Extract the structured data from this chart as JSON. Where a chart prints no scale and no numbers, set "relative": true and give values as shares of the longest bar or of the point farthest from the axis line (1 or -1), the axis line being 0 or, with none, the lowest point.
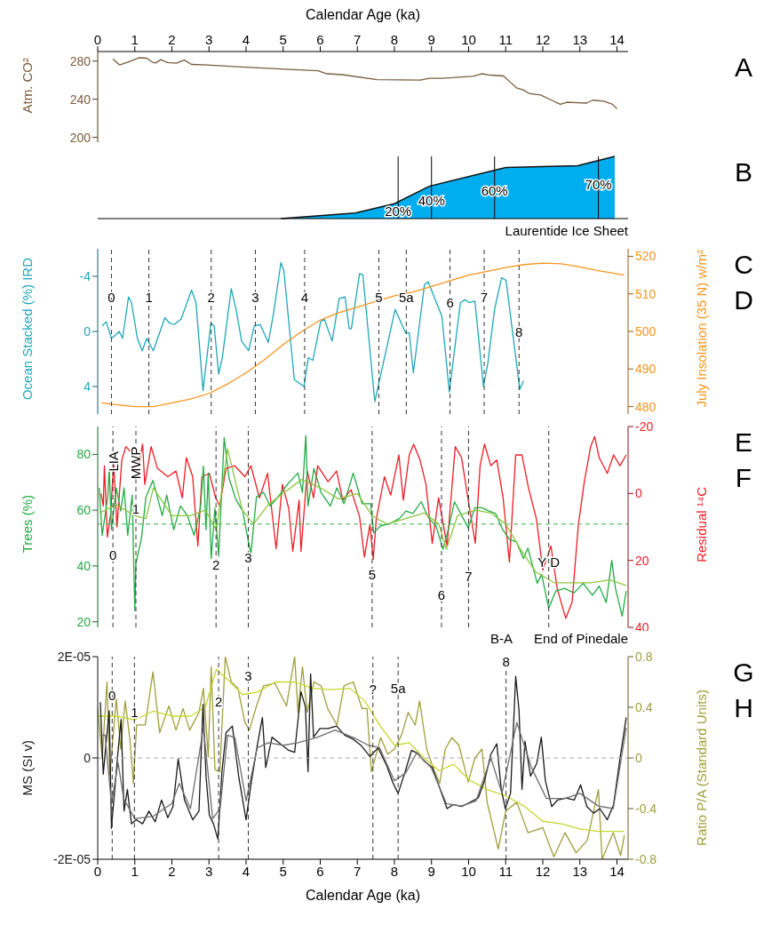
{
  "chart_data": [
    {
      "type": "line",
      "xlabel": "Calendar Age (ka)",
      "xlim": [
        0,
        14.3
      ],
      "xticks": [
        0,
        1,
        2,
        3,
        4,
        5,
        6,
        7,
        8,
        9,
        10,
        11,
        12,
        13,
        14
      ],
      "ylabel": "Atm. CO²",
      "ylim": [
        195,
        290
      ],
      "yticks": [
        200,
        240,
        280
      ],
      "annotations": [
        "A"
      ],
      "series": [
        {
          "color": "#7a5c3a",
          "x": [
            0.41,
            0.59,
            0.82,
            1.12,
            1.32,
            1.47,
            1.56,
            1.7,
            1.88,
            2.12,
            2.33,
            2.53,
            2.94,
            4.12,
            5.29,
            5.94,
            6.18,
            6.59,
            7.53,
            8.7,
            8.94,
            9.29,
            10.12,
            10.35,
            10.59,
            10.94,
            11.12,
            11.29,
            11.47,
            11.65,
            11.94,
            12.24,
            12.47,
            12.65,
            12.94,
            13.18,
            13.35,
            13.65,
            13.88,
            14.0
          ],
          "values": [
            282,
            276,
            279,
            283.5,
            283,
            279,
            278,
            281.5,
            278.5,
            277.8,
            281,
            276.5,
            276,
            273.3,
            271,
            269.8,
            266.7,
            265.8,
            260.5,
            260,
            262,
            262,
            264,
            266.7,
            265.3,
            264.4,
            258,
            252,
            249.8,
            245.8,
            244.4,
            239,
            234.7,
            236.9,
            236.4,
            236,
            239,
            238,
            234.7,
            230
          ]
        }
      ]
    },
    {
      "type": "area",
      "relative": true,
      "xlim": [
        0,
        14.3
      ],
      "tick_labels": false,
      "annotations": [
        "B",
        "Laurentide Ice Sheet",
        {
          "text": "20%",
          "x": 8.1,
          "y": 0.12
        },
        {
          "text": "40%",
          "x": 9.0,
          "y": 0.3
        },
        {
          "text": "60%",
          "x": 10.7,
          "y": 0.45
        },
        {
          "text": "70%",
          "x": 13.5,
          "y": 0.55
        }
      ],
      "ref_lines": [
        {
          "axis": "x",
          "value": 8.1,
          "color": "#000000",
          "line_style": "solid"
        },
        {
          "axis": "x",
          "value": 9.0,
          "color": "#000000",
          "line_style": "solid"
        },
        {
          "axis": "x",
          "value": 10.7,
          "color": "#000000",
          "line_style": "solid"
        },
        {
          "axis": "x",
          "value": 13.5,
          "color": "#000000",
          "line_style": "solid"
        }
      ],
      "series": [
        {
          "color": "#00aeef",
          "x": [
            4.94,
            6.94,
            8.0,
            8.94,
            11.0,
            12.94,
            13.94
          ],
          "values": [
            0,
            0.09,
            0.24,
            0.52,
            0.82,
            0.85,
            1
          ]
        }
      ]
    },
    {
      "type": "line",
      "xlim": [
        0,
        14.3
      ],
      "tick_labels": "y",
      "ylabel": "Ocean Stacked (%) IRD",
      "ylim": [
        6,
        -6
      ],
      "yticks": [
        -4,
        0,
        4
      ],
      "y2label": "July Insolation (35 N) w/m²",
      "y2lim": [
        478,
        522
      ],
      "y2ticks": [
        480,
        490,
        500,
        510,
        520
      ],
      "annotations": [
        "C",
        "D",
        {
          "text": "0",
          "x": 0.37,
          "y": -2.5
        },
        {
          "text": "1",
          "x": 1.38,
          "y": -2.5
        },
        {
          "text": "2",
          "x": 3.06,
          "y": -2.5
        },
        {
          "text": "3",
          "x": 4.25,
          "y": -2.5
        },
        {
          "text": "4",
          "x": 5.58,
          "y": -2.5
        },
        {
          "text": "5",
          "x": 7.58,
          "y": -2.5
        },
        {
          "text": "5a",
          "x": 8.32,
          "y": -2.5
        },
        {
          "text": "6",
          "x": 9.5,
          "y": -2.1
        },
        {
          "text": "7",
          "x": 10.42,
          "y": -2.5
        },
        {
          "text": "8",
          "x": 11.36,
          "y": 0
        }
      ],
      "ref_lines": [
        {
          "axis": "x",
          "value": 0.37,
          "color": "#333333",
          "line_style": "dashed"
        },
        {
          "axis": "x",
          "value": 1.38,
          "color": "#333333",
          "line_style": "dashed"
        },
        {
          "axis": "x",
          "value": 3.06,
          "color": "#333333",
          "line_style": "dashed"
        },
        {
          "axis": "x",
          "value": 4.25,
          "color": "#333333",
          "line_style": "dashed"
        },
        {
          "axis": "x",
          "value": 5.58,
          "color": "#333333",
          "line_style": "dashed"
        },
        {
          "axis": "x",
          "value": 7.58,
          "color": "#333333",
          "line_style": "dashed"
        },
        {
          "axis": "x",
          "value": 8.32,
          "color": "#333333",
          "line_style": "dashed"
        },
        {
          "axis": "x",
          "value": 9.5,
          "color": "#333333",
          "line_style": "dashed"
        },
        {
          "axis": "x",
          "value": 10.42,
          "color": "#333333",
          "line_style": "dashed"
        },
        {
          "axis": "x",
          "value": 11.36,
          "color": "#333333",
          "line_style": "dashed"
        }
      ],
      "series": [
        {
          "color": "#1ea7b8",
          "x": [
            0.12,
            0.23,
            0.37,
            0.46,
            0.58,
            0.67,
            0.83,
            0.91,
            1.07,
            1.2,
            1.32,
            1.5,
            1.81,
            1.94,
            2.06,
            2.25,
            2.53,
            2.65,
            2.84,
            3.05,
            3.14,
            3.26,
            3.36,
            3.6,
            3.73,
            3.88,
            4.07,
            4.22,
            4.38,
            4.6,
            4.74,
            4.94,
            5.02,
            5.3,
            5.56,
            5.68,
            5.8,
            6.01,
            6.11,
            6.32,
            6.51,
            6.67,
            6.78,
            6.84,
            7.06,
            7.15,
            7.47,
            8.02,
            8.3,
            8.4,
            8.51,
            8.81,
            8.91,
            9.28,
            9.48,
            9.78,
            9.9,
            10.02,
            10.17,
            10.4,
            10.52,
            10.7,
            10.89,
            11.01,
            11.38,
            11.48
          ],
          "values": [
            -0.4,
            -0.7,
            0.5,
            0.3,
            0,
            0.5,
            -2.5,
            -2.1,
            0.5,
            1.4,
            0.5,
            1.4,
            -1,
            -0.6,
            -0.5,
            -0.9,
            -3,
            -2.1,
            4.3,
            -0.6,
            -0.4,
            3.1,
            1.9,
            -3.1,
            -1.6,
            0.7,
            1.4,
            -0.4,
            -0.5,
            0.8,
            -1.3,
            -5,
            -4.4,
            3.5,
            4,
            1.9,
            2.1,
            -0.7,
            -0.9,
            0.7,
            -2.4,
            -2.5,
            -0.2,
            -0.2,
            -4.2,
            -4.1,
            5.1,
            -1.6,
            0.1,
            0.1,
            3,
            -3.4,
            -3.6,
            -1.1,
            4.4,
            -2.1,
            -2.3,
            -2.1,
            -2.2,
            4,
            2.3,
            -1.6,
            -3.9,
            -3.7,
            4.2,
            3.6
          ]
        },
        {
          "color": "#f7941d",
          "axis": "y2",
          "x": [
            0.1,
            0.5,
            1,
            1.5,
            2,
            2.5,
            3,
            3.5,
            4,
            4.5,
            5,
            5.5,
            6,
            6.5,
            7,
            7.5,
            8,
            8.5,
            9,
            9.5,
            10,
            10.5,
            11,
            11.5,
            12,
            12.5,
            13,
            13.5,
            14.2
          ],
          "values": [
            481,
            480.5,
            480,
            480,
            481,
            482,
            483.5,
            486,
            489,
            492.5,
            496.5,
            500,
            503,
            505,
            506.5,
            508,
            509.5,
            510.5,
            512,
            513.5,
            515,
            516,
            517,
            517.8,
            518.2,
            518,
            517.2,
            516.2,
            515
          ]
        }
      ]
    },
    {
      "type": "line",
      "xlim": [
        0,
        14.3
      ],
      "tick_labels": "y",
      "ylabel": "Trees (%)",
      "ylim": [
        18,
        90
      ],
      "yticks": [
        20,
        40,
        60,
        80
      ],
      "y2label": "Residual ¹⁴C",
      "y2lim": [
        40,
        -20
      ],
      "y2ticks": [
        -20,
        0,
        20,
        40
      ],
      "ref_lines": [
        {
          "axis": "y",
          "value": 55,
          "color": "#3cb44b",
          "line_style": "dashed"
        },
        {
          "axis": "x",
          "value": 0.41,
          "color": "#333333",
          "line_style": "dashed"
        },
        {
          "axis": "x",
          "value": 1.03,
          "color": "#333333",
          "line_style": "dashed"
        },
        {
          "axis": "x",
          "value": 3.19,
          "color": "#333333",
          "line_style": "dashed"
        },
        {
          "axis": "x",
          "value": 4.06,
          "color": "#333333",
          "line_style": "dashed"
        },
        {
          "axis": "x",
          "value": 7.4,
          "color": "#333333",
          "line_style": "dashed"
        },
        {
          "axis": "x",
          "value": 9.27,
          "color": "#333333",
          "line_style": "dashed"
        },
        {
          "axis": "x",
          "value": 10.0,
          "color": "#333333",
          "line_style": "dashed"
        },
        {
          "axis": "x",
          "value": 12.16,
          "color": "#333333",
          "line_style": "dashed"
        }
      ],
      "annotations": [
        "E",
        "F",
        "B-A",
        "End of Pinedale",
        {
          "text": "LIA",
          "x": 0.41,
          "y": 77.5
        },
        {
          "text": "MWP",
          "x": 1.03,
          "y": 77
        },
        {
          "text": "0",
          "x": 0.41,
          "y": 44
        },
        {
          "text": "1",
          "x": 1.03,
          "y": 60.5
        },
        {
          "text": "2",
          "x": 3.19,
          "y": 40.4
        },
        {
          "text": "3",
          "x": 4.06,
          "y": 43
        },
        {
          "text": "5",
          "x": 7.4,
          "y": 36.8
        },
        {
          "text": "6",
          "x": 9.27,
          "y": 29.6
        },
        {
          "text": "7",
          "x": 10.0,
          "y": 36.3
        },
        {
          "text": "Y D",
          "x": 12.16,
          "y": 41.5
        }
      ],
      "series": [
        {
          "color": "#ed1c24",
          "axis": "y2",
          "x": [
            0.09,
            0.15,
            0.18,
            0.26,
            0.35,
            0.43,
            0.52,
            0.65,
            0.76,
            0.93,
            1.1,
            1.21,
            1.27,
            1.44,
            1.61,
            1.89,
            2.11,
            2.28,
            2.39,
            2.56,
            2.7,
            2.81,
            3.01,
            3.18,
            3.29,
            3.46,
            3.69,
            3.97,
            4.13,
            4.36,
            4.58,
            4.81,
            4.98,
            5.15,
            5.26,
            5.43,
            5.48,
            5.65,
            5.82,
            5.93,
            6.21,
            6.44,
            6.61,
            6.83,
            7.06,
            7.19,
            7.34,
            7.43,
            7.51,
            7.73,
            7.9,
            8.12,
            8.24,
            8.4,
            8.52,
            8.69,
            8.85,
            9.02,
            9.19,
            9.42,
            9.64,
            9.81,
            9.98,
            10.18,
            10.31,
            10.43,
            10.6,
            10.76,
            10.93,
            11.1,
            11.27,
            11.44,
            11.61,
            11.83,
            12.0,
            12.22,
            12.39,
            12.62,
            12.79,
            12.96,
            13.12,
            13.29,
            13.4,
            13.52,
            13.74,
            13.91,
            14.08,
            14.25
          ],
          "values": [
            0,
            3.7,
            -8.3,
            13,
            6,
            -9,
            10,
            -10,
            -14,
            -12,
            -8,
            -14.7,
            -2.7,
            -14,
            -7.5,
            -5,
            -6.7,
            1.3,
            -10.7,
            -5,
            15.7,
            -5,
            -6,
            1.3,
            3.7,
            -7.5,
            -8.3,
            -5,
            -8.3,
            1.3,
            -6,
            16.5,
            -2.7,
            4.5,
            17.3,
            2,
            17.3,
            -6.7,
            1.3,
            -8.3,
            -3.5,
            -6.7,
            2,
            -1.1,
            6.9,
            19,
            9.3,
            19.7,
            7.7,
            -5,
            0.5,
            -11.5,
            2,
            -11.5,
            -14.7,
            -10,
            -2.7,
            14.9,
            1.3,
            15.7,
            -14,
            -10.7,
            1.3,
            14.9,
            -8.3,
            -14.7,
            -8.3,
            -10,
            1.3,
            20.5,
            -11.5,
            -11.5,
            -1.9,
            7.7,
            22.9,
            15.7,
            28.5,
            37.3,
            32.5,
            9.3,
            -3.5,
            -14,
            -17,
            -10.7,
            -6,
            -11.5,
            -8.3,
            -11.5
          ]
        },
        {
          "color": "#22aa44",
          "x": [
            0.04,
            0.12,
            0.27,
            0.31,
            0.37,
            0.5,
            0.62,
            0.71,
            0.81,
            0.93,
            1.0,
            1.03,
            1.18,
            1.3,
            1.49,
            1.74,
            1.86,
            2.05,
            2.23,
            2.42,
            2.6,
            2.77,
            2.85,
            2.92,
            2.98,
            3.06,
            3.16,
            3.26,
            3.41,
            3.54,
            3.72,
            3.91,
            4.03,
            4.13,
            4.28,
            4.47,
            4.65,
            4.9,
            5.15,
            5.4,
            5.52,
            5.61,
            5.67,
            5.83,
            6.02,
            6.27,
            6.45,
            6.64,
            6.89,
            7.13,
            7.36,
            7.44,
            7.63,
            7.88,
            8.13,
            8.31,
            8.5,
            8.72,
            8.93,
            9.12,
            9.31,
            9.43,
            9.62,
            9.74,
            9.99,
            10.17,
            10.36,
            10.55,
            10.73,
            10.92,
            11.11,
            11.29,
            11.48,
            11.6,
            11.85,
            11.97,
            12.16,
            12.35,
            12.59,
            12.84,
            13.09,
            13.34,
            13.52,
            13.71,
            13.86,
            13.96,
            14.14,
            14.25
          ],
          "values": [
            68,
            51,
            64.7,
            75,
            53,
            68,
            59.7,
            68,
            51,
            65.4,
            24,
            41,
            50,
            64.7,
            70.7,
            58,
            65.4,
            53,
            61.5,
            58,
            51,
            61,
            75.8,
            53,
            73.3,
            42.7,
            60.7,
            43.5,
            86,
            71.5,
            64,
            59.7,
            51,
            44.4,
            64.7,
            66.4,
            61.5,
            65.4,
            69.8,
            73.3,
            66.4,
            86.8,
            61.5,
            75,
            66.4,
            61.5,
            68,
            62.3,
            73.3,
            62.3,
            62.3,
            51.9,
            54.4,
            55.2,
            57,
            59.7,
            58.8,
            63,
            57,
            54.4,
            46,
            51.9,
            63,
            60,
            53.6,
            60.9,
            60.9,
            59.7,
            58.8,
            53,
            49.5,
            48.6,
            42.7,
            46.4,
            33.8,
            37,
            24.9,
            31,
            32,
            30.3,
            33.8,
            29.5,
            32.8,
            26.9,
            42,
            32,
            22,
            31
          ]
        },
        {
          "color": "#8dc63f",
          "x": [
            0.05,
            0.5,
            1.0,
            1.3,
            1.5,
            2,
            2.5,
            2.9,
            3.2,
            3.5,
            3.9,
            4.2,
            4.6,
            5,
            5.5,
            6,
            6.5,
            7,
            7.4,
            7.8,
            8.3,
            8.8,
            9.2,
            9.4,
            9.7,
            10.2,
            10.6,
            11,
            11.4,
            11.8,
            12.3,
            12.8,
            13.3,
            13.8,
            14.25
          ],
          "values": [
            59,
            62,
            58,
            57,
            68,
            58,
            58,
            60,
            53,
            82,
            60,
            55,
            62,
            66,
            71,
            68,
            64,
            66,
            58,
            55,
            57,
            59,
            55,
            46,
            58,
            60,
            59,
            55,
            46,
            38,
            34,
            34,
            34,
            35,
            33
          ]
        }
      ]
    },
    {
      "type": "line",
      "xlabel": "Calendar Age (ka)",
      "xlim": [
        0,
        14.3
      ],
      "xticks": [
        0,
        1,
        2,
        3,
        4,
        5,
        6,
        7,
        8,
        9,
        10,
        11,
        12,
        13,
        14
      ],
      "ylabel": "MS (SI v)",
      "ylim": [
        -2e-05,
        2e-05
      ],
      "yticks": [
        {
          "value": 2e-05,
          "label": "2E-05"
        },
        0,
        {
          "value": -2e-05,
          "label": "-2E-05"
        }
      ],
      "y2label": "Ratio P/A (Standard Units)",
      "y2lim": [
        -0.8,
        0.8
      ],
      "y2ticks": [
        -0.8,
        -0.4,
        0,
        0.4,
        0.8
      ],
      "ref_lines": [
        {
          "axis": "y",
          "value": 0,
          "color": "#aaaaaa",
          "line_style": "dashed"
        },
        {
          "axis": "x",
          "value": 0.39,
          "color": "#333333",
          "line_style": "dashed"
        },
        {
          "axis": "x",
          "value": 0.99,
          "color": "#333333",
          "line_style": "dashed"
        },
        {
          "axis": "x",
          "value": 3.26,
          "color": "#333333",
          "line_style": "dashed"
        },
        {
          "axis": "x",
          "value": 4.06,
          "color": "#333333",
          "line_style": "dashed"
        },
        {
          "axis": "x",
          "value": 7.42,
          "color": "#333333",
          "line_style": "dashed"
        },
        {
          "axis": "x",
          "value": 8.1,
          "color": "#333333",
          "line_style": "dashed"
        },
        {
          "axis": "x",
          "value": 11.01,
          "color": "#333333",
          "line_style": "dashed"
        }
      ],
      "annotations": [
        "G",
        "H",
        {
          "text": "0",
          "x": 0.39,
          "y": 1.23e-05
        },
        {
          "text": "1",
          "x": 0.99,
          "y": 9.1e-06
        },
        {
          "text": "2",
          "x": 3.26,
          "y": 1.12e-05
        },
        {
          "text": "3",
          "x": 4.06,
          "y": 1.63e-05
        },
        {
          "text": "?",
          "x": 7.42,
          "y": 1.36e-05
        },
        {
          "text": "5a",
          "x": 8.1,
          "y": 1.38e-05
        },
        {
          "text": "8",
          "x": 11.01,
          "y": 1.9e-05
        }
      ],
      "series": [
        {
          "color": "#9e9e3c",
          "axis": "y2",
          "x": [
            0,
            0.12,
            0.25,
            0.33,
            0.5,
            0.62,
            0.74,
            0.87,
            0.96,
            1.05,
            1.28,
            1.49,
            1.67,
            1.92,
            2.11,
            2.3,
            2.48,
            2.73,
            2.85,
            2.98,
            3.06,
            3.16,
            3.29,
            3.44,
            3.6,
            3.78,
            3.97,
            4.09,
            4.28,
            4.47,
            4.78,
            5.09,
            5.31,
            5.4,
            5.52,
            5.65,
            5.83,
            6.02,
            6.2,
            6.45,
            6.64,
            6.89,
            7.13,
            7.26,
            7.38,
            7.63,
            7.82,
            8.0,
            8.19,
            8.37,
            8.56,
            8.68,
            8.87,
            9.06,
            9.22,
            9.37,
            9.55,
            9.74,
            9.99,
            10.17,
            10.36,
            10.5,
            10.8,
            11.0,
            11.3,
            11.6,
            12.0,
            12.3,
            12.6,
            12.9,
            13.2,
            13.5,
            13.6,
            13.9,
            14.1,
            14.2
          ],
          "values": [
            0.39,
            0,
            0.6,
            -0.13,
            0.47,
            0.07,
            0.45,
            0.14,
            -0.2,
            0.26,
            0.26,
            0.68,
            0.2,
            0.41,
            0.22,
            0.39,
            0.22,
            0.36,
            0.55,
            0.01,
            0.72,
            -0.09,
            -0.11,
            0.8,
            0.6,
            0.55,
            0.28,
            0.22,
            0.41,
            0.57,
            0.59,
            0.41,
            0.8,
            0.36,
            0.72,
            0.36,
            0.6,
            0.57,
            0.39,
            0.26,
            0.57,
            0.6,
            0.39,
            0.39,
            -0.11,
            0.16,
            0.03,
            0.07,
            0.18,
            0.36,
            0.26,
            0.45,
            0.07,
            -0.09,
            -0.2,
            0.07,
            0.16,
            0.1,
            -0.19,
            0,
            0.07,
            -0.35,
            -0.72,
            -0.42,
            -0.35,
            -0.59,
            -0.55,
            -0.78,
            -0.59,
            -0.75,
            -0.65,
            -0.25,
            -0.8,
            -0.59,
            -0.77,
            -0.61
          ]
        },
        {
          "color": "#c8d62e",
          "axis": "y2",
          "x": [
            0,
            0.5,
            1,
            1.5,
            2,
            2.5,
            2.9,
            3.2,
            3.5,
            3.9,
            4.3,
            4.8,
            5.3,
            5.8,
            6.3,
            6.8,
            7.2,
            7.6,
            8,
            8.4,
            8.8,
            9.2,
            9.6,
            10,
            10.5,
            11,
            11.5,
            12,
            12.5,
            13,
            13.5,
            14.2
          ],
          "values": [
            0.33,
            0.33,
            0.3,
            0.37,
            0.33,
            0.33,
            0.4,
            0.7,
            0.62,
            0.5,
            0.52,
            0.6,
            0.6,
            0.55,
            0.54,
            0.55,
            0.45,
            0.26,
            0.1,
            0.12,
            0,
            -0.1,
            -0.05,
            -0.17,
            -0.25,
            -0.3,
            -0.38,
            -0.5,
            -0.52,
            -0.56,
            -0.58,
            -0.58
          ]
        },
        {
          "color": "#1a1a1a",
          "x": [
            0.07,
            0.15,
            0.24,
            0.31,
            0.37,
            0.46,
            0.54,
            0.63,
            0.71,
            0.8,
            0.91,
            1.04,
            1.21,
            1.38,
            1.55,
            1.72,
            1.89,
            2.03,
            2.17,
            2.34,
            2.56,
            2.73,
            2.84,
            2.92,
            3.01,
            3.12,
            3.24,
            3.35,
            3.46,
            3.63,
            3.8,
            4.0,
            4.13,
            4.3,
            4.44,
            4.53,
            4.7,
            4.92,
            5.15,
            5.31,
            5.48,
            5.6,
            5.67,
            5.74,
            5.82,
            5.99,
            6.21,
            6.44,
            6.66,
            6.89,
            7.11,
            7.34,
            7.56,
            7.79,
            7.96,
            8.1,
            8.29,
            8.46,
            8.63,
            8.8,
            9.02,
            9.19,
            9.42,
            9.58,
            9.81,
            10.03,
            10.26,
            10.43,
            10.6,
            10.76,
            10.88,
            10.99,
            11.13,
            11.27,
            11.36,
            11.44,
            11.52,
            11.67,
            11.84,
            11.96,
            12.07,
            12.24,
            12.4,
            12.63,
            12.85,
            13.02,
            13.19,
            13.37,
            13.54,
            13.74,
            13.91,
            14.08,
            14.25
          ],
          "values": [
            1.1e-05,
            -3.2e-06,
            4.1e-06,
            9.3e-06,
            -1.39e-05,
            -6.2e-06,
            7e-07,
            7.6e-06,
            -1.05e-05,
            -6.2e-06,
            -1.3e-05,
            -1.22e-05,
            -1.3e-05,
            -1.05e-05,
            -1.26e-05,
            -8.3e-06,
            -1.18e-05,
            -9.6e-06,
            -2e-07,
            -8.3e-06,
            -1.22e-05,
            -1.05e-05,
            1.06e-05,
            -3.6e-06,
            -1.13e-05,
            -1.3e-05,
            -1.6e-05,
            -2.7e-06,
            5e-06,
            6.3e-06,
            -3.6e-06,
            -1.22e-05,
            -5.3e-06,
            2.4e-06,
            8e-06,
            -1.9e-06,
            4.1e-06,
            2.8e-06,
            1.5e-06,
            1.1e-06,
            1.31e-05,
            1.01e-05,
            -2.7e-06,
            1.66e-05,
            4.1e-06,
            5.8e-06,
            5.8e-06,
            6.3e-06,
            4.5e-06,
            3.7e-06,
            2.4e-06,
            3e-07,
            2e-06,
            -1.5e-06,
            -4.9e-06,
            -7e-06,
            -2.7e-06,
            1.5e-06,
            9e-07,
            -6e-07,
            -1.9e-06,
            -5.3e-06,
            -1e-05,
            -9.2e-06,
            -9.6e-06,
            -8.8e-06,
            -7.9e-06,
            -4.5e-06,
            7e-07,
            2.8e-06,
            -6.2e-06,
            -1e-05,
            -7e-06,
            1.61e-05,
            9.3e-06,
            -6.2e-06,
            3.3e-06,
            -3.6e-06,
            -1e-06,
            4.1e-06,
            -4.5e-06,
            -9.6e-06,
            -8.3e-06,
            -7.9e-06,
            -8.3e-06,
            -5.3e-06,
            -9.6e-06,
            -1.09e-05,
            -1e-05,
            -1.22e-05,
            -9.2e-06,
            -2e-07,
            8e-06
          ]
        },
        {
          "color": "#6e6e6e",
          "x": [
            0.07,
            0.2,
            0.37,
            0.55,
            0.7,
            1.0,
            1.5,
            2.0,
            2.2,
            2.5,
            2.85,
            3.1,
            3.3,
            3.5,
            3.7,
            4.0,
            4.3,
            4.6,
            5.0,
            5.4,
            5.9,
            6.4,
            6.9,
            7.3,
            7.6,
            8.0,
            8.3,
            8.6,
            9.0,
            9.4,
            9.8,
            10.2,
            10.6,
            10.9,
            11.3,
            11.7,
            12.1,
            12.6,
            13.0,
            13.5,
            13.9,
            14.25
          ],
          "values": [
            4.5e-06,
            4.5e-06,
            -9e-06,
            -1e-06,
            -8e-06,
            -1.2e-05,
            -1.15e-05,
            -9e-06,
            -5e-06,
            -1e-05,
            6e-06,
            -1.2e-05,
            -1e-05,
            4.5e-06,
            4e-06,
            -8.5e-06,
            2e-06,
            3e-06,
            2.5e-06,
            3e-06,
            4e-06,
            5.5e-06,
            4e-06,
            2.5e-06,
            2e-06,
            -4.5e-06,
            -3e-06,
            1e-06,
            -2e-06,
            -9e-06,
            -9.5e-06,
            -8.5e-06,
            0,
            -7e-06,
            7e-06,
            -2e-06,
            -8e-06,
            -8e-06,
            -7e-06,
            -9.5e-06,
            -1e-05,
            6e-06
          ]
        }
      ]
    }
  ]
}
